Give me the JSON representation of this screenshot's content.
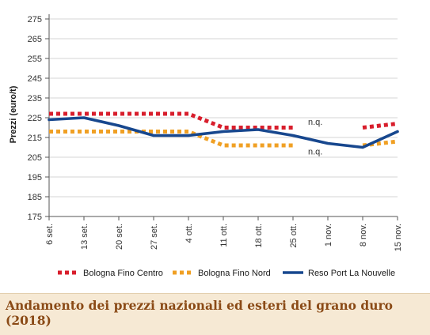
{
  "colors": {
    "bologna_centro": "#d81e2c",
    "bologna_nord": "#f0a024",
    "reso_port": "#17478e",
    "grid": "#d6d6d6",
    "axis": "#555555",
    "caption_bg": "#f6e9d4",
    "caption_text": "#8a4a16"
  },
  "chart_data": {
    "type": "line",
    "title": "",
    "ylabel": "Prezzi (euro/t)",
    "xlabel": "",
    "ylim": [
      175,
      275
    ],
    "yticks": [
      175,
      185,
      195,
      205,
      215,
      225,
      235,
      245,
      255,
      265,
      275
    ],
    "grid": "horizontal",
    "categories": [
      "6 set.",
      "13 set.",
      "20 set.",
      "27 set.",
      "4 ott.",
      "11 ott.",
      "18 ott.",
      "25 ott.",
      "1 nov.",
      "8 nov.",
      "15 nov."
    ],
    "series": [
      {
        "name": "Bologna Fino Centro",
        "style": "dotted",
        "color": "#d81e2c",
        "values": [
          227,
          227,
          227,
          227,
          227,
          220,
          220,
          220,
          null,
          220,
          222
        ]
      },
      {
        "name": "Bologna Fino Nord",
        "style": "dotted",
        "color": "#f0a024",
        "values": [
          218,
          218,
          218,
          218,
          218,
          211,
          211,
          211,
          null,
          211,
          213
        ]
      },
      {
        "name": "Reso Port La Nouvelle",
        "style": "solid",
        "color": "#17478e",
        "values": [
          224,
          225,
          221,
          216,
          216,
          218,
          219,
          216,
          212,
          210,
          218
        ]
      }
    ],
    "annotations": [
      {
        "text": "n.q.",
        "x": "1 nov.",
        "y": 223
      },
      {
        "text": "n.q.",
        "x": "1 nov.",
        "y": 208
      }
    ],
    "legend_position": "bottom"
  },
  "caption": {
    "title": "Andamento dei prezzi nazionali ed esteri del grano duro (2018)"
  }
}
